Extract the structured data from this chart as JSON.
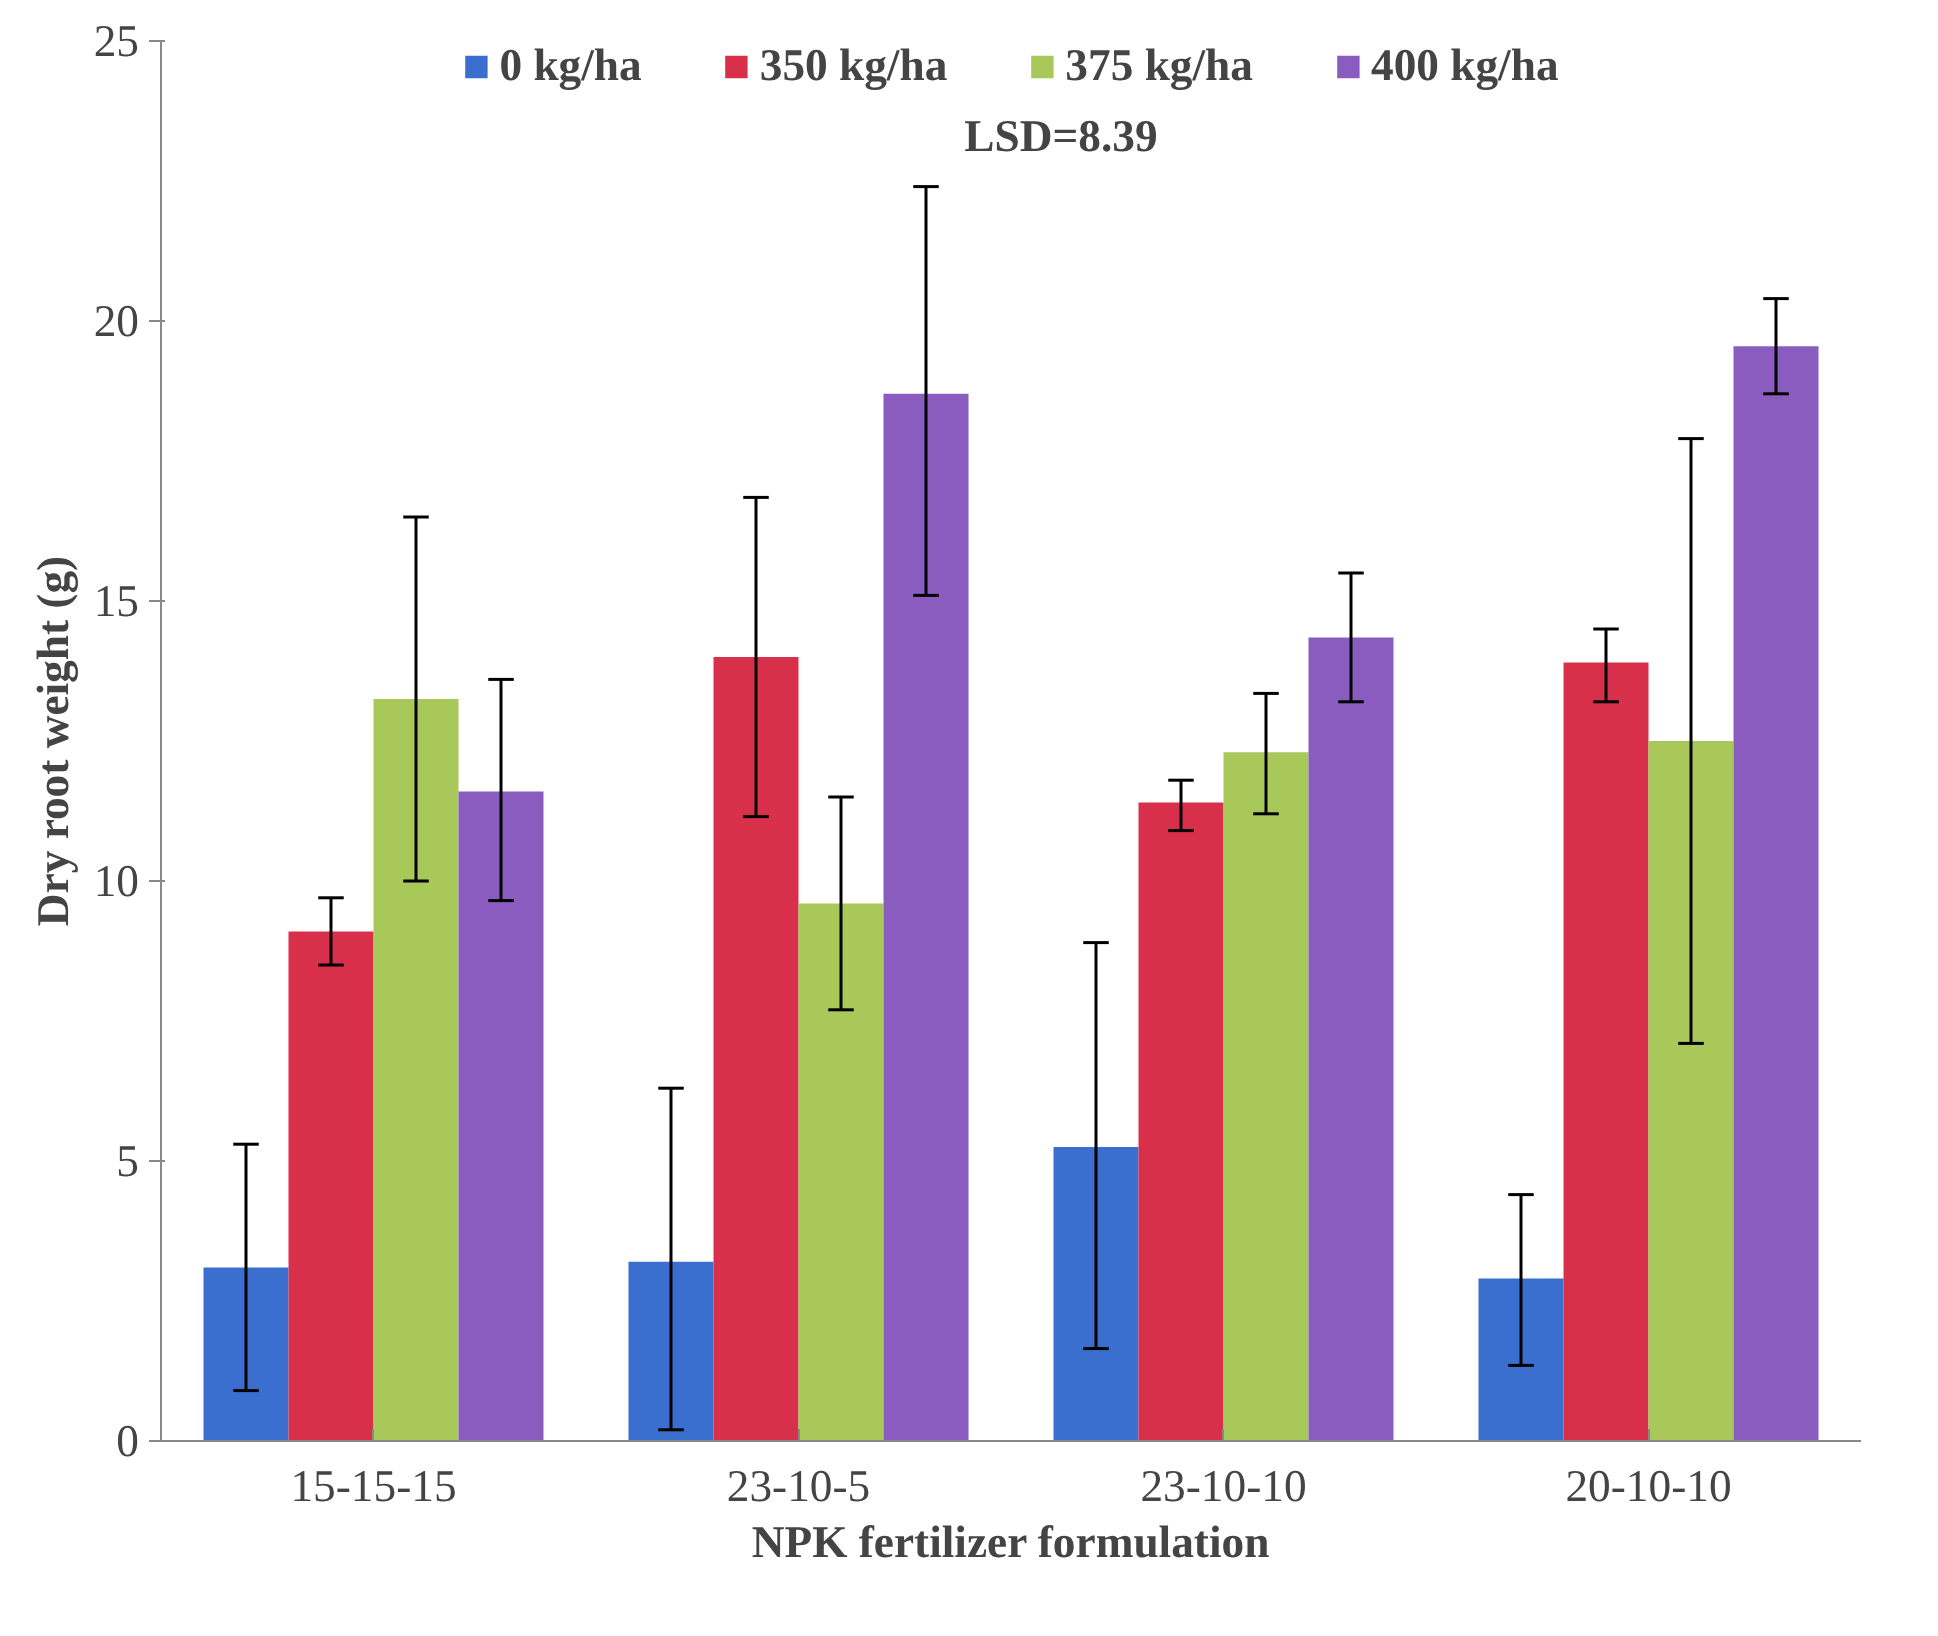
{
  "chart_data": {
    "type": "bar",
    "xlabel": "NPK fertilizer formulation",
    "ylabel": "Dry root weight (g)",
    "categories": [
      "15-15-15",
      "23-10-5",
      "23-10-10",
      "20-10-10"
    ],
    "series": [
      {
        "name": "0 kg/ha",
        "color": "#3a6fd0",
        "values": [
          3.1,
          3.2,
          5.25,
          2.9
        ],
        "errors": [
          [
            0.9,
            5.3
          ],
          [
            0.2,
            6.3
          ],
          [
            1.65,
            8.9
          ],
          [
            1.35,
            4.4
          ]
        ]
      },
      {
        "name": "350 kg/ha",
        "color": "#d8304a",
        "values": [
          9.1,
          14.0,
          11.4,
          13.9
        ],
        "errors": [
          [
            8.5,
            9.7
          ],
          [
            11.15,
            16.85
          ],
          [
            10.9,
            11.8
          ],
          [
            13.2,
            14.5
          ]
        ]
      },
      {
        "name": "375 kg/ha",
        "color": "#a9c85a",
        "values": [
          13.25,
          9.6,
          12.3,
          12.5
        ],
        "errors": [
          [
            10.0,
            16.5
          ],
          [
            7.7,
            11.5
          ],
          [
            11.2,
            13.35
          ],
          [
            7.1,
            17.9
          ]
        ]
      },
      {
        "name": "400 kg/ha",
        "color": "#8a5cbf",
        "values": [
          11.6,
          18.7,
          14.35,
          19.55
        ],
        "errors": [
          [
            9.65,
            13.6
          ],
          [
            15.1,
            22.4
          ],
          [
            13.2,
            15.5
          ],
          [
            18.7,
            20.4
          ]
        ]
      }
    ],
    "ylim": [
      0,
      25
    ],
    "yticks": [
      0,
      5,
      10,
      15,
      20,
      25
    ],
    "grid": false,
    "legend": "top",
    "annotations": [
      "LSD=8.39"
    ]
  }
}
